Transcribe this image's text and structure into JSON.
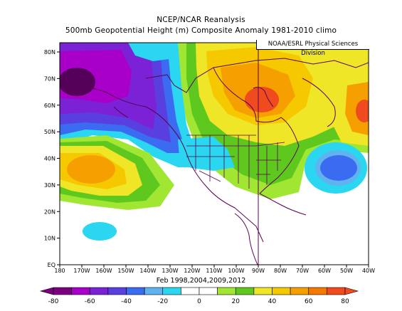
{
  "title": "NCEP/NCAR Reanalysis",
  "subtitle": "500mb Geopotential Height (m) Composite Anomaly 1981-2010 climo",
  "credit": "NOAA/ESRL Physical Sciences Division",
  "caption": "Feb 1998,2004,2009,2012",
  "lat_labels": [
    "80N",
    "70N",
    "60N",
    "50N",
    "40N",
    "30N",
    "20N",
    "10N",
    "EQ"
  ],
  "lon_labels": [
    "180",
    "170W",
    "160W",
    "150W",
    "140W",
    "130W",
    "120W",
    "110W",
    "100W",
    "90W",
    "80W",
    "70W",
    "60W",
    "50W",
    "40W"
  ],
  "colorbar": {
    "tick_labels": [
      "-80",
      "-60",
      "-40",
      "-20",
      "0",
      "20",
      "40",
      "60",
      "80"
    ],
    "colors": [
      "#7a0080",
      "#a800c8",
      "#7b22d6",
      "#5a3fe0",
      "#3a6bf0",
      "#5fb4f0",
      "#2bd6f0",
      "#ffffff",
      "#ffffff",
      "#a0e632",
      "#5fc81e",
      "#f0e628",
      "#f5c800",
      "#f5a000",
      "#f57800",
      "#f04b1e"
    ]
  },
  "colors": {
    "purple_dark": "#55005a",
    "purple": "#7b22d6",
    "violet": "#a800c8",
    "blue": "#3a6bf0",
    "cyan": "#2bd6f0",
    "green": "#5fc81e",
    "lime": "#a0e632",
    "yellow": "#f0e628",
    "orange": "#f5a000",
    "red_orange": "#f04b1e",
    "coast": "#5a0050"
  }
}
